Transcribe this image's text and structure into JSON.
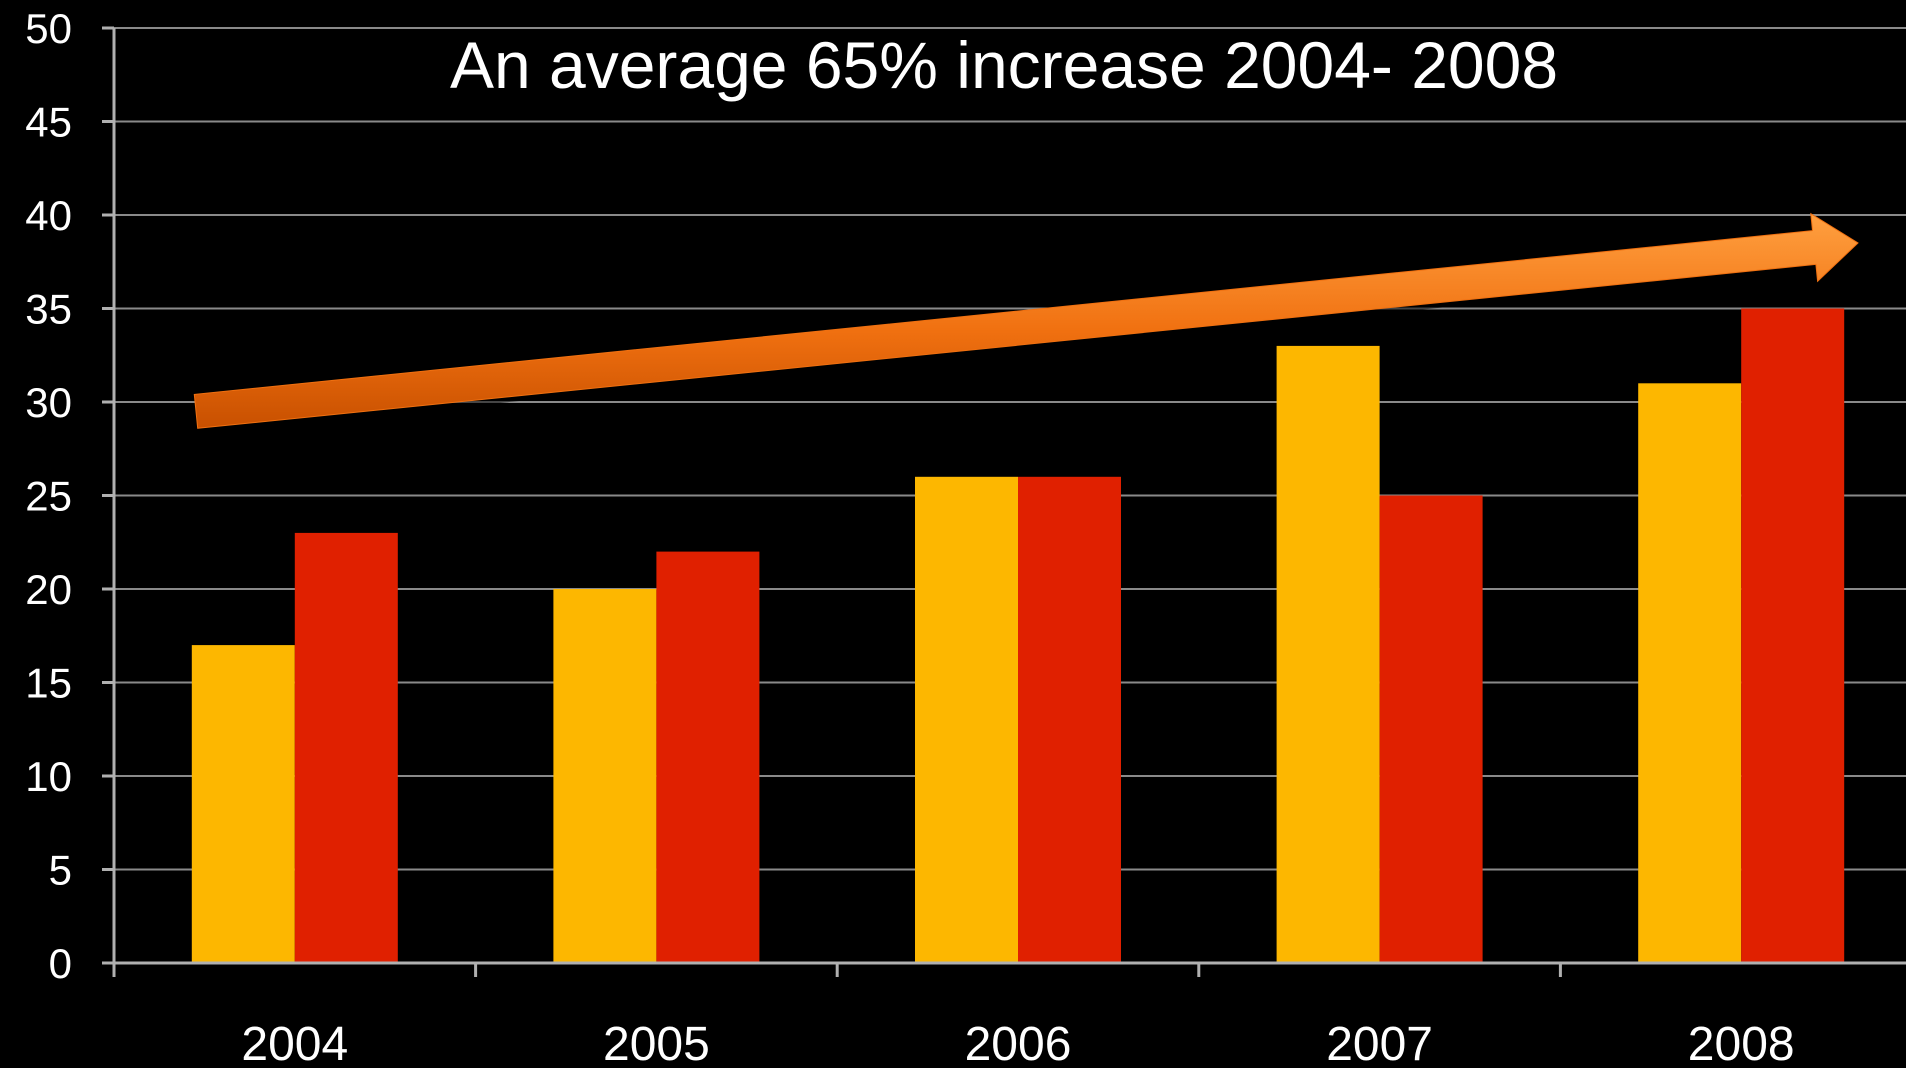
{
  "chart_data": {
    "type": "bar",
    "title": "",
    "xlabel": "",
    "ylabel": "",
    "categories": [
      "2004",
      "2005",
      "2006",
      "2007",
      "2008"
    ],
    "series": [
      {
        "values": [
          17,
          20,
          26,
          33,
          31
        ],
        "color": "#FDB700"
      },
      {
        "values": [
          23,
          22,
          26,
          25,
          35
        ],
        "color": "#E02000"
      }
    ],
    "ylim": [
      0,
      50
    ],
    "yticks": [
      0,
      5,
      10,
      15,
      20,
      25,
      30,
      35,
      40,
      45,
      50
    ],
    "grid": true,
    "legend": "none",
    "annotations": [
      {
        "text": "An average 65% increase 2004- 2008"
      }
    ],
    "trend_arrow": {
      "from_y": 29.5,
      "to_y": 38.5,
      "color": "#F07010"
    }
  },
  "colors": {
    "background": "#000000",
    "grid": "#8a8a8a",
    "axis": "#b0b0b0",
    "text": "#ffffff"
  }
}
